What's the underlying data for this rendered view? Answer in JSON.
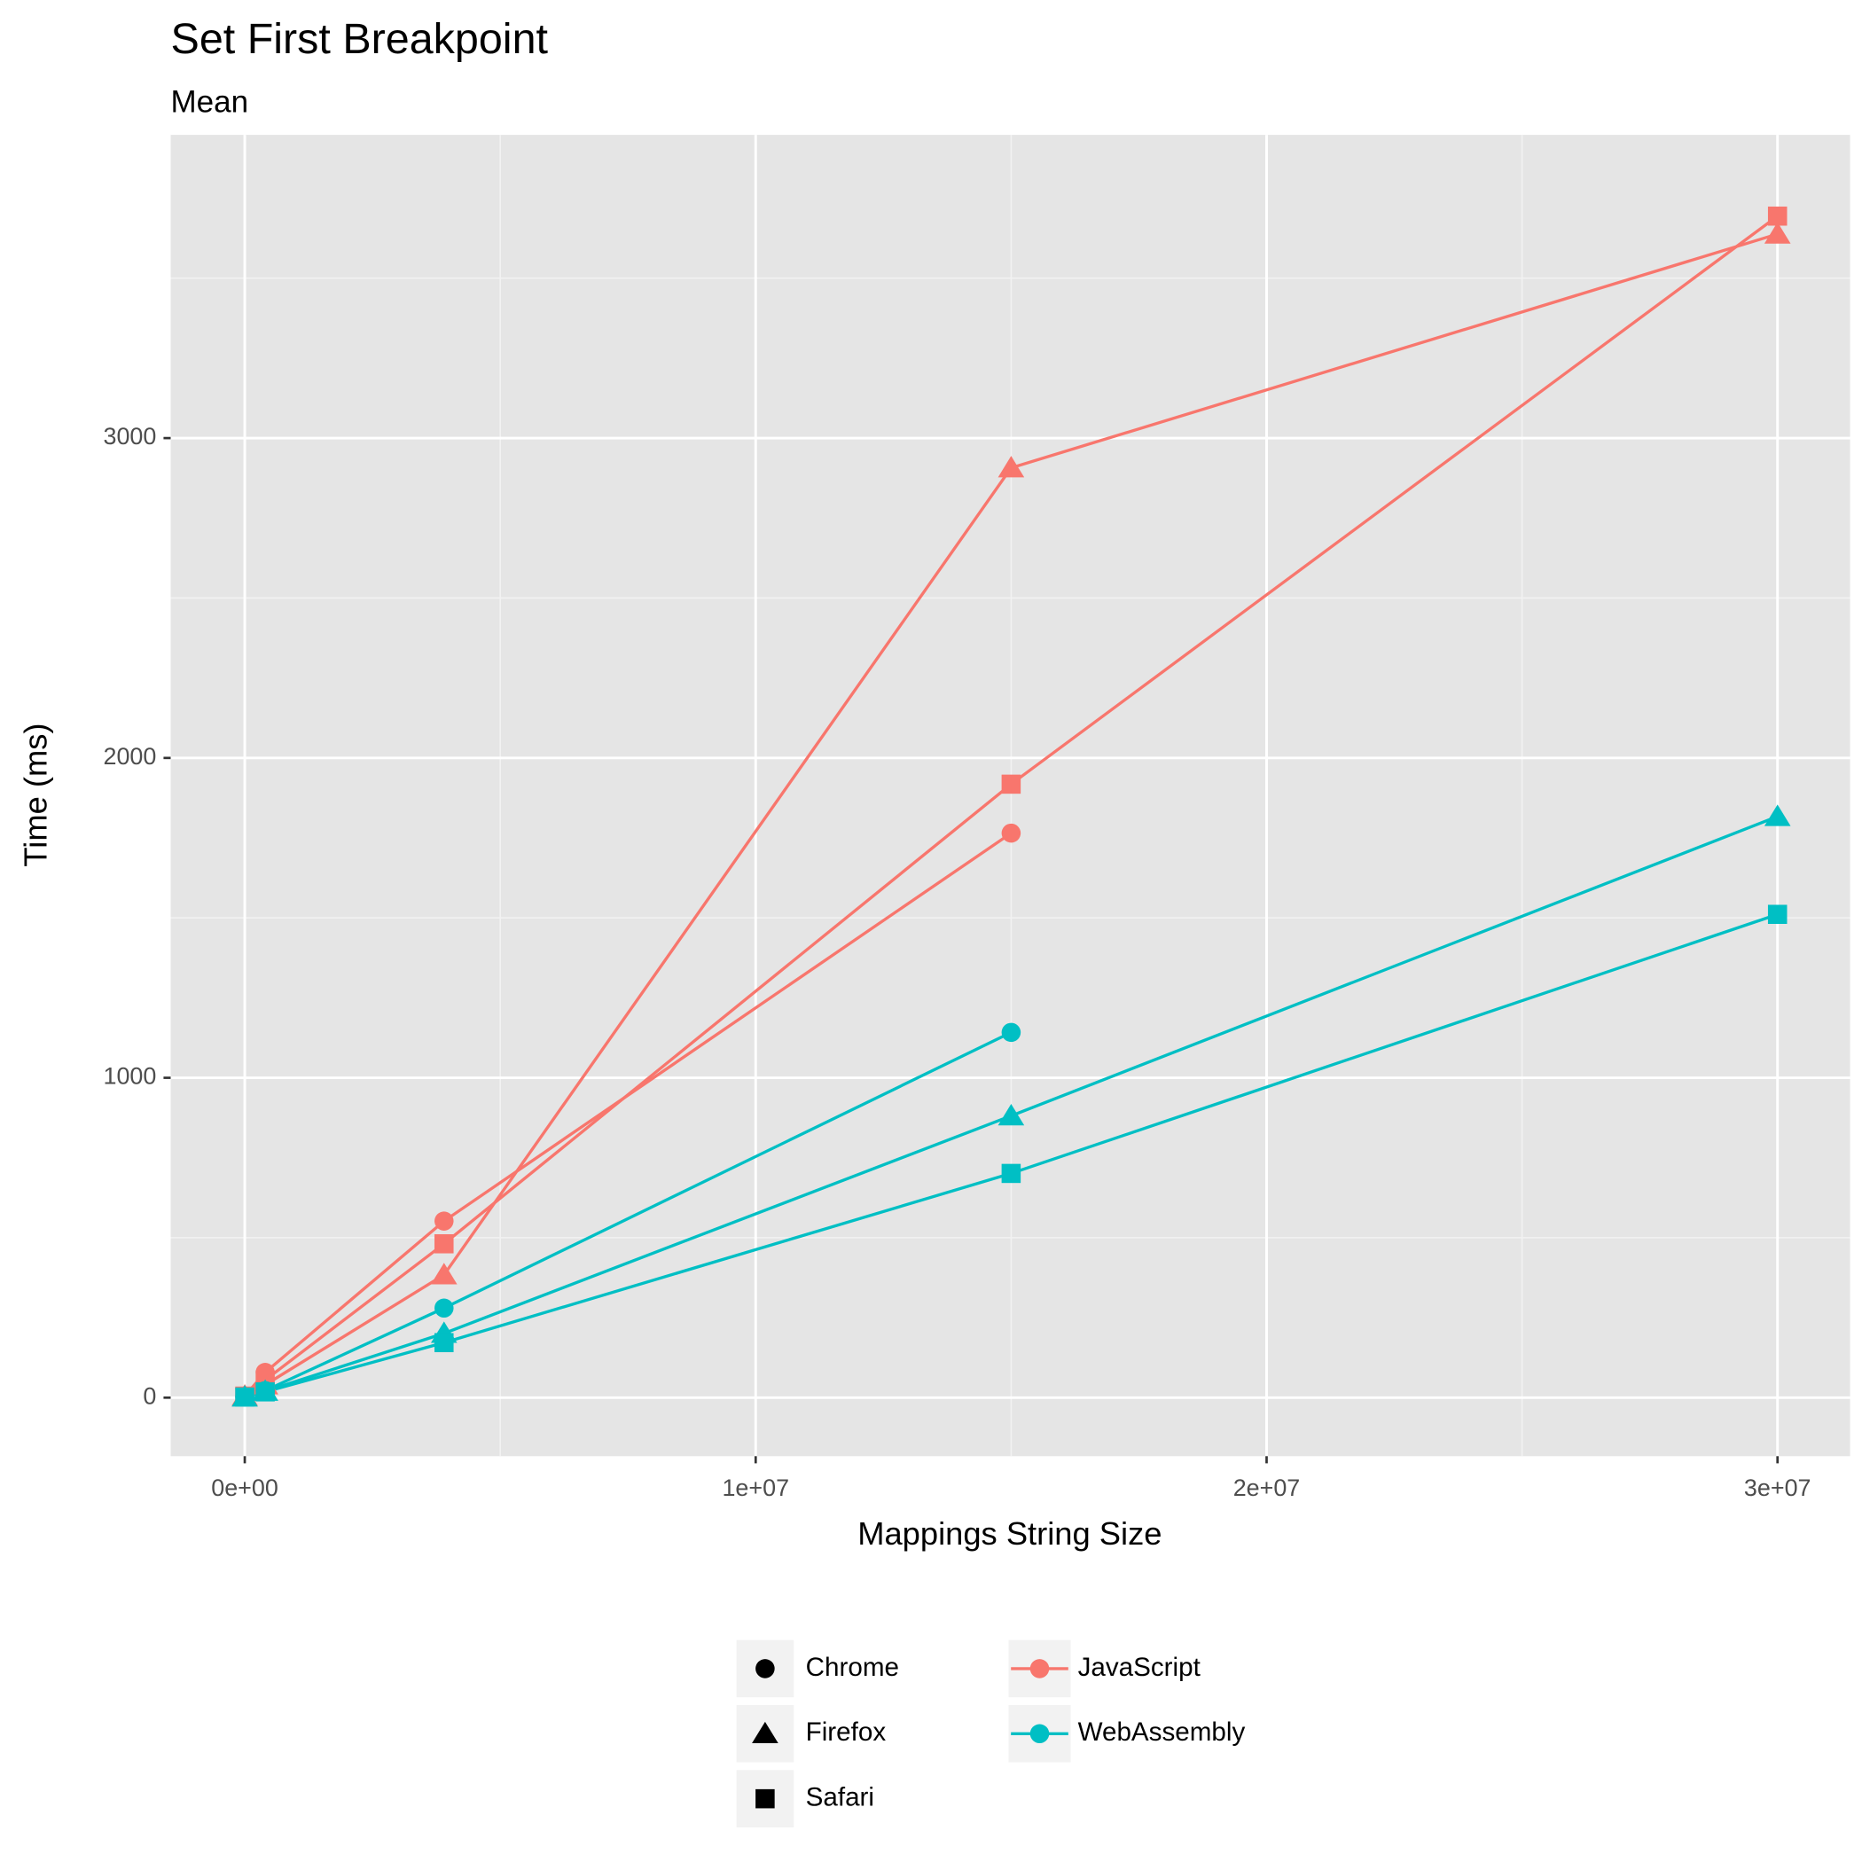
{
  "chart_data": {
    "type": "line",
    "title": "Set First Breakpoint",
    "subtitle": "Mean",
    "x_label": "Mappings String Size",
    "y_label": "Time (ms)",
    "x": [
      0,
      400000,
      3900000,
      15000000,
      30000000
    ],
    "xlim": [
      -1450000,
      31420000
    ],
    "ylim": [
      -183,
      3948
    ],
    "xticks": [
      {
        "value": 0,
        "label": "0e+00"
      },
      {
        "value": 10000000,
        "label": "1e+07"
      },
      {
        "value": 20000000,
        "label": "2e+07"
      },
      {
        "value": 30000000,
        "label": "3e+07"
      }
    ],
    "yticks": [
      0,
      1000,
      2000,
      3000
    ],
    "x_minor_grid": [
      5000000,
      15000000,
      25000000
    ],
    "y_minor_grid": [
      500,
      1500,
      2500,
      3500
    ],
    "grid": true,
    "shapes": [
      {
        "name": "Chrome",
        "shape": "circle"
      },
      {
        "name": "Firefox",
        "shape": "triangle"
      },
      {
        "name": "Safari",
        "shape": "square"
      }
    ],
    "series": [
      {
        "name": "JavaScript",
        "color": "#F8766D",
        "lines": [
          {
            "values": [
              5,
              79,
              552,
              1765,
              null
            ]
          },
          {
            "values": [
              5,
              40,
              384,
              2907,
              3638
            ]
          },
          {
            "values": [
              5,
              55,
              481,
              1918,
              3694
            ]
          }
        ]
      },
      {
        "name": "WebAssembly",
        "color": "#00BFC4",
        "lines": [
          {
            "values": [
              2,
              22,
              280,
              1142,
              null
            ]
          },
          {
            "values": [
              2,
              20,
              201,
              881,
              1817
            ]
          },
          {
            "values": [
              2,
              18,
              172,
              701,
              1511
            ]
          }
        ]
      }
    ]
  }
}
